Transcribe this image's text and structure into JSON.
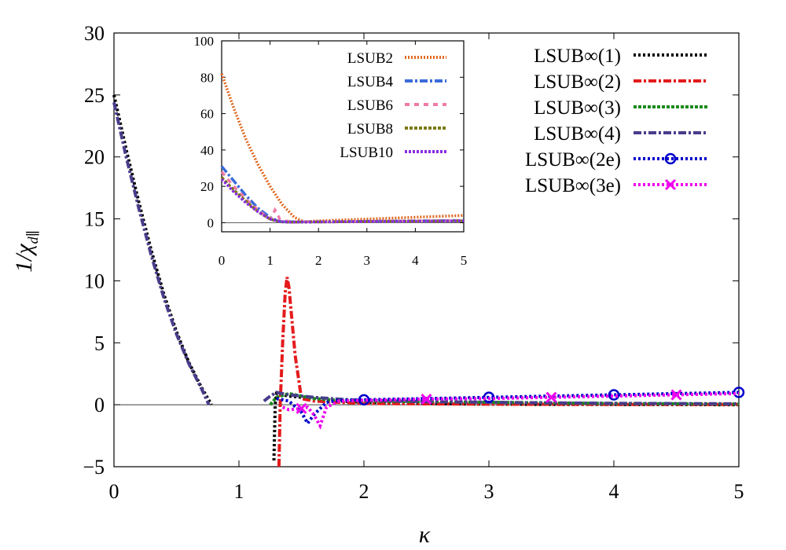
{
  "chart_data": [
    {
      "type": "line",
      "role": "main",
      "xlabel": "κ",
      "ylabel": "1/χ",
      "ylabel_subscript": "d∥",
      "xlim": [
        0,
        5
      ],
      "ylim": [
        -5,
        30
      ],
      "xticks": [
        "0",
        "1",
        "2",
        "3",
        "4",
        "5"
      ],
      "yticks": [
        "−5",
        "0",
        "5",
        "10",
        "15",
        "20",
        "25",
        "30"
      ],
      "legend_position": "top-right",
      "series": [
        {
          "name": "LSUB∞(1)",
          "color": "#000000",
          "dash": "3,3",
          "marker": "none",
          "x": [
            0,
            0.1,
            0.2,
            0.3,
            0.4,
            0.5,
            0.6,
            0.7,
            0.78
          ],
          "y": [
            25,
            20.5,
            16.3,
            12.4,
            8.9,
            5.9,
            3.4,
            1.4,
            0
          ],
          "x2": [
            1.28,
            1.29,
            1.3,
            1.4,
            1.6,
            1.8,
            2.0,
            2.5,
            3,
            3.5,
            4,
            4.5,
            5
          ],
          "y2": [
            -4.5,
            0,
            0.9,
            0.7,
            0.5,
            0.3,
            0.2,
            0.1,
            0.05,
            0.03,
            0.02,
            0.01,
            0.0
          ]
        },
        {
          "name": "LSUB∞(2)",
          "color": "#e41a1c",
          "dash": "10,3,3,3",
          "marker": "none",
          "x": [
            1.32,
            1.33,
            1.35,
            1.37,
            1.385,
            1.4,
            1.45,
            1.5,
            1.6,
            1.8,
            2,
            3,
            4,
            5
          ],
          "y": [
            -5,
            0,
            5,
            9,
            10.3,
            9.5,
            4,
            0.5,
            0.3,
            0.2,
            0.1,
            0.05,
            0.03,
            0.02
          ]
        },
        {
          "name": "LSUB∞(3)",
          "color": "#1a8a1a",
          "dash": "4,2",
          "marker": "none",
          "x": [
            1.25,
            1.3,
            1.4,
            1.5,
            1.6,
            1.8,
            2.0,
            2.5,
            3,
            3.5,
            4,
            4.5,
            5
          ],
          "y": [
            0,
            0.6,
            0.9,
            0.7,
            0.5,
            0.35,
            0.3,
            0.25,
            0.2,
            0.15,
            0.1,
            0.08,
            0.06
          ]
        },
        {
          "name": "LSUB∞(4)",
          "color": "#483d8b",
          "dash": "10,3,3,3",
          "marker": "none",
          "x": [
            0,
            0.1,
            0.2,
            0.3,
            0.4,
            0.5,
            0.6,
            0.7,
            0.76
          ],
          "y": [
            24.4,
            19.9,
            15.8,
            12.0,
            8.6,
            5.7,
            3.3,
            1.3,
            0
          ],
          "x2": [
            1.2,
            1.25,
            1.3,
            1.4,
            1.6,
            1.8,
            2.0,
            2.5,
            3,
            3.5,
            4,
            4.5,
            5
          ],
          "y2": [
            0.3,
            0.7,
            1.0,
            0.8,
            0.6,
            0.45,
            0.35,
            0.25,
            0.2,
            0.15,
            0.12,
            0.1,
            0.08
          ]
        },
        {
          "name": "LSUB∞(2e)",
          "color": "#0000cc",
          "dash": "3,3",
          "marker": "circle",
          "x": [
            1.3,
            1.4,
            1.5,
            1.55,
            1.6,
            1.7,
            1.8,
            2,
            2.5,
            3,
            3.5,
            4,
            4.5,
            5
          ],
          "y": [
            0.5,
            0.3,
            -0.6,
            -1.5,
            -0.8,
            0.2,
            0.35,
            0.4,
            0.5,
            0.6,
            0.7,
            0.8,
            0.9,
            1.0
          ],
          "marker_x": [
            2,
            3,
            4,
            5
          ],
          "marker_y": [
            0.4,
            0.6,
            0.8,
            1.0
          ]
        },
        {
          "name": "LSUB∞(3e)",
          "color": "#ee00ee",
          "dash": "3,3",
          "marker": "cross",
          "x": [
            1.35,
            1.4,
            1.5,
            1.55,
            1.6,
            1.65,
            1.7,
            1.8,
            2,
            2.5,
            3,
            3.5,
            4,
            4.5,
            5
          ],
          "y": [
            -0.2,
            -0.4,
            -0.3,
            -0.2,
            -0.8,
            -1.7,
            -0.2,
            0.3,
            0.35,
            0.45,
            0.5,
            0.6,
            0.7,
            0.8,
            0.9
          ],
          "marker_x": [
            1.5,
            2.5,
            3.5,
            4.5
          ],
          "marker_y": [
            -0.3,
            0.45,
            0.6,
            0.8
          ]
        }
      ]
    },
    {
      "type": "line",
      "role": "inset",
      "xlim": [
        0,
        5
      ],
      "ylim": [
        -5,
        100
      ],
      "xticks": [
        "0",
        "1",
        "2",
        "3",
        "4",
        "5"
      ],
      "yticks": [
        "0",
        "20",
        "40",
        "60",
        "80",
        "100"
      ],
      "legend_position": "top-right",
      "series": [
        {
          "name": "LSUB2",
          "color": "#e0681f",
          "dash": "2,2",
          "x": [
            0,
            0.25,
            0.5,
            0.75,
            1.0,
            1.25,
            1.5,
            1.7,
            2,
            3,
            4,
            5
          ],
          "y": [
            82,
            63,
            46,
            32,
            20,
            10,
            3,
            0.5,
            1,
            2,
            3,
            4
          ]
        },
        {
          "name": "LSUB4",
          "color": "#3b6bd9",
          "dash": "10,3,3,3",
          "x": [
            0,
            0.25,
            0.5,
            0.75,
            1.0,
            1.15,
            1.3,
            1.5,
            2,
            3,
            4,
            5
          ],
          "y": [
            31,
            23,
            15,
            8,
            3,
            1,
            0.5,
            0.5,
            0.5,
            0.8,
            1,
            1.2
          ]
        },
        {
          "name": "LSUB6",
          "color": "#f07aa8",
          "dash": "6,6",
          "x": [
            0,
            0.25,
            0.5,
            0.75,
            1.0,
            1.05,
            1.1,
            1.15,
            1.2,
            1.3,
            1.5,
            2,
            3,
            4,
            5
          ],
          "y": [
            28,
            20,
            13,
            7,
            2,
            4,
            7,
            5,
            2,
            1,
            0.5,
            0.5,
            0.8,
            1,
            1.2
          ]
        },
        {
          "name": "LSUB8",
          "color": "#7a7a10",
          "dash": "4,2",
          "x": [
            0,
            0.25,
            0.5,
            0.75,
            1.0,
            1.2,
            1.3,
            1.5,
            2,
            3,
            4,
            5
          ],
          "y": [
            25,
            18,
            12,
            6,
            2,
            0.5,
            0.3,
            0.3,
            0.4,
            0.6,
            0.8,
            1.0
          ]
        },
        {
          "name": "LSUB10",
          "color": "#8a2be2",
          "dash": "3,2",
          "x": [
            0,
            0.25,
            0.5,
            0.75,
            1.0,
            1.2,
            1.4,
            1.6,
            2,
            3,
            4,
            5
          ],
          "y": [
            24,
            17,
            11,
            6,
            2,
            0.6,
            0.3,
            0.3,
            0.4,
            0.6,
            0.8,
            1.0
          ]
        }
      ]
    }
  ]
}
